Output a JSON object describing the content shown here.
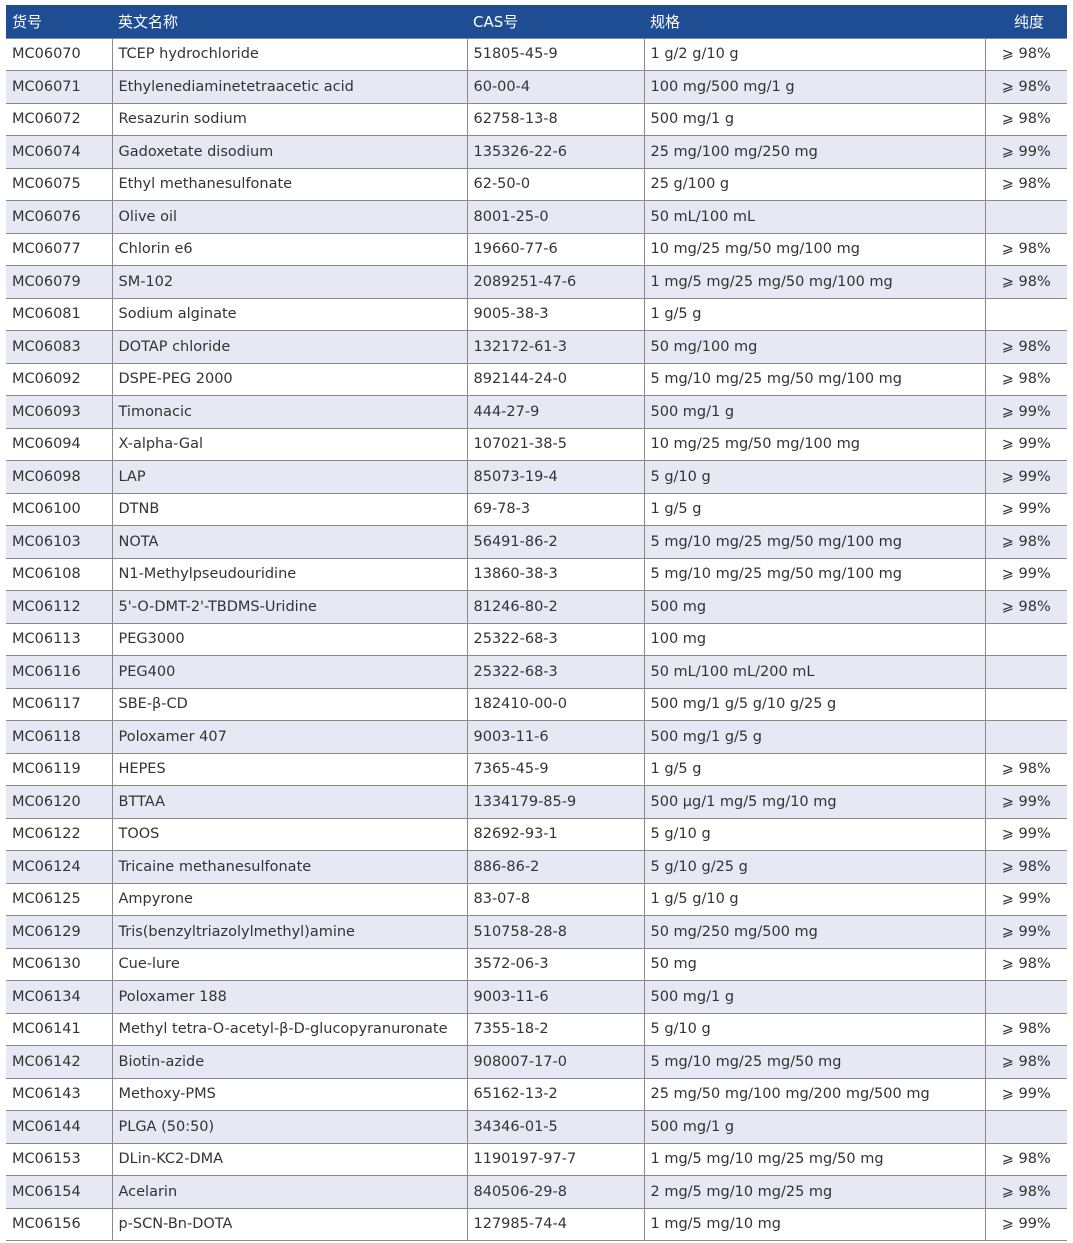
{
  "table": {
    "header": [
      "货号",
      "英文名称",
      "CAS号",
      "规格",
      "纯度"
    ],
    "rows": [
      [
        "MC06070",
        "TCEP hydrochloride",
        "51805-45-9",
        "1 g/2 g/10 g",
        "⩾ 98%"
      ],
      [
        "MC06071",
        "Ethylenediaminetetraacetic acid",
        "60-00-4",
        "100 mg/500 mg/1 g",
        "⩾ 98%"
      ],
      [
        "MC06072",
        "Resazurin sodium",
        "62758-13-8",
        "500 mg/1 g",
        "⩾ 98%"
      ],
      [
        "MC06074",
        "Gadoxetate disodium",
        "135326-22-6",
        "25 mg/100 mg/250 mg",
        "⩾ 99%"
      ],
      [
        "MC06075",
        "Ethyl methanesulfonate",
        "62-50-0",
        "25 g/100 g",
        "⩾ 98%"
      ],
      [
        "MC06076",
        "Olive oil",
        "8001-25-0",
        "50 mL/100 mL",
        null
      ],
      [
        "MC06077",
        "Chlorin e6",
        "19660-77-6",
        "10 mg/25 mg/50 mg/100 mg",
        "⩾ 98%"
      ],
      [
        "MC06079",
        "SM-102",
        "2089251-47-6",
        "1 mg/5 mg/25 mg/50 mg/100 mg",
        "⩾ 98%"
      ],
      [
        "MC06081",
        "Sodium alginate",
        "9005-38-3",
        "1 g/5 g",
        null
      ],
      [
        "MC06083",
        "DOTAP chloride",
        "132172-61-3",
        "50 mg/100 mg",
        "⩾ 98%"
      ],
      [
        "MC06092",
        "DSPE-PEG 2000",
        "892144-24-0",
        "5 mg/10 mg/25 mg/50 mg/100 mg",
        "⩾ 98%"
      ],
      [
        "MC06093",
        "Timonacic",
        "444-27-9",
        "500 mg/1 g",
        "⩾ 99%"
      ],
      [
        "MC06094",
        "X-alpha-Gal",
        "107021-38-5",
        "10 mg/25 mg/50 mg/100 mg",
        "⩾ 99%"
      ],
      [
        "MC06098",
        "LAP",
        "85073-19-4",
        "5 g/10 g",
        "⩾ 99%"
      ],
      [
        "MC06100",
        "DTNB",
        "69-78-3",
        "1 g/5 g",
        "⩾ 99%"
      ],
      [
        "MC06103",
        "NOTA",
        "56491-86-2",
        "5 mg/10 mg/25 mg/50 mg/100 mg",
        "⩾ 98%"
      ],
      [
        "MC06108",
        "N1-Methylpseudouridine",
        "13860-38-3",
        "5 mg/10 mg/25 mg/50 mg/100 mg",
        "⩾ 99%"
      ],
      [
        "MC06112",
        "5'-O-DMT-2'-TBDMS-Uridine",
        "81246-80-2",
        "500 mg",
        "⩾ 98%"
      ],
      [
        "MC06113",
        "PEG3000",
        "25322-68-3",
        "100 mg",
        null
      ],
      [
        "MC06116",
        "PEG400",
        "25322-68-3",
        "50 mL/100 mL/200 mL",
        null
      ],
      [
        "MC06117",
        "SBE-β-CD",
        "182410-00-0",
        "500 mg/1 g/5 g/10 g/25 g",
        null
      ],
      [
        "MC06118",
        "Poloxamer 407",
        "9003-11-6",
        "500 mg/1 g/5 g",
        null
      ],
      [
        "MC06119",
        "HEPES",
        "7365-45-9",
        "1 g/5 g",
        "⩾ 98%"
      ],
      [
        "MC06120",
        "BTTAA",
        "1334179-85-9",
        "500 μg/1 mg/5 mg/10 mg",
        "⩾ 99%"
      ],
      [
        "MC06122",
        "TOOS",
        "82692-93-1",
        "5 g/10 g",
        "⩾ 99%"
      ],
      [
        "MC06124",
        "Tricaine methanesulfonate",
        "886-86-2",
        "5 g/10 g/25 g",
        "⩾ 98%"
      ],
      [
        "MC06125",
        "Ampyrone",
        "83-07-8",
        "1 g/5 g/10 g",
        "⩾ 99%"
      ],
      [
        "MC06129",
        "Tris(benzyltriazolylmethyl)amine",
        "510758-28-8",
        "50 mg/250 mg/500 mg",
        "⩾ 99%"
      ],
      [
        "MC06130",
        "Cue-lure",
        "3572-06-3",
        "50 mg",
        "⩾ 98%"
      ],
      [
        "MC06134",
        "Poloxamer 188",
        "9003-11-6",
        "500 mg/1 g",
        null
      ],
      [
        "MC06141",
        "Methyl tetra-O-acetyl-β-D-glucopyranuronate",
        "7355-18-2",
        "5 g/10 g",
        "⩾ 98%"
      ],
      [
        "MC06142",
        "Biotin-azide",
        "908007-17-0",
        "5 mg/10 mg/25 mg/50 mg",
        "⩾ 98%"
      ],
      [
        "MC06143",
        "Methoxy-PMS",
        "65162-13-2",
        "25 mg/50 mg/100 mg/200 mg/500 mg",
        "⩾ 99%"
      ],
      [
        "MC06144",
        "PLGA (50:50)",
        "34346-01-5",
        "500 mg/1 g",
        null
      ],
      [
        "MC06153",
        "DLin-KC2-DMA",
        "1190197-97-7",
        "1 mg/5 mg/10 mg/25 mg/50 mg",
        "⩾ 98%"
      ],
      [
        "MC06154",
        "Acelarin",
        "840506-29-8",
        "2 mg/5 mg/10 mg/25 mg",
        "⩾ 98%"
      ],
      [
        "MC06156",
        "p-SCN-Bn-DOTA",
        "127985-74-4",
        "1 mg/5 mg/10 mg",
        "⩾ 99%"
      ]
    ]
  }
}
